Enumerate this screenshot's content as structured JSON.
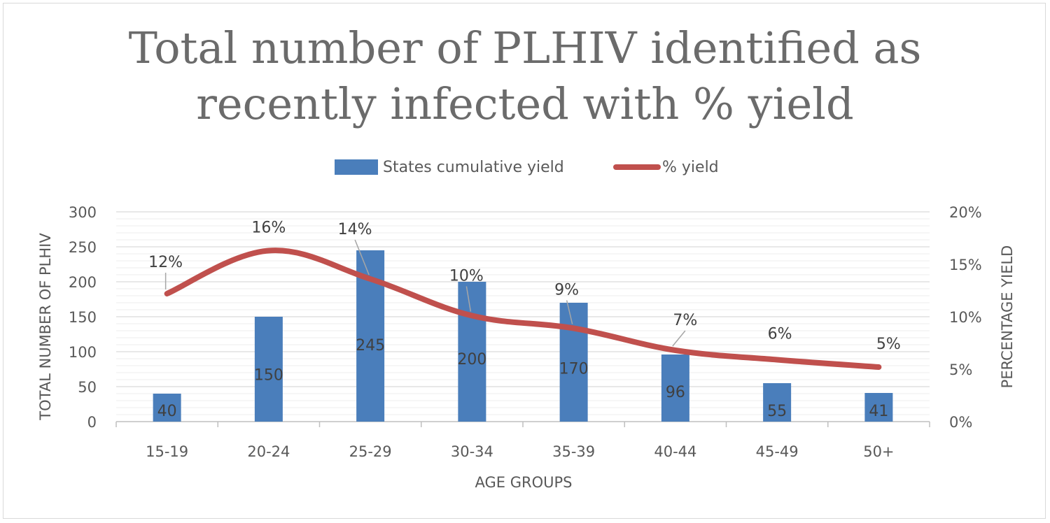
{
  "chart_data": {
    "type": "bar",
    "title_lines": [
      "Total number of PLHIV identified as",
      "recently infected with % yield"
    ],
    "categories": [
      "15-19",
      "20-24",
      "25-29",
      "30-34",
      "35-39",
      "40-44",
      "45-49",
      "50+"
    ],
    "series": [
      {
        "name": "States cumulative yield",
        "kind": "bar",
        "axis": "left",
        "color": "#4a7ebb",
        "values": [
          40,
          150,
          245,
          200,
          170,
          96,
          55,
          41
        ],
        "labels": [
          "40",
          "150",
          "245",
          "200",
          "170",
          "96",
          "55",
          "41"
        ]
      },
      {
        "name": "% yield",
        "kind": "line",
        "axis": "right",
        "color": "#c0504d",
        "values": [
          12.2,
          16.3,
          13.6,
          10.1,
          8.9,
          6.8,
          5.9,
          5.2
        ],
        "labels": [
          "12%",
          "16%",
          "14%",
          "10%",
          "9%",
          "7%",
          "6%",
          "5%"
        ]
      }
    ],
    "xlabel": "AGE GROUPS",
    "ylabel": "TOTAL NUMBER OF PLHIV",
    "y2label": "PERCENTAGE YIELD",
    "ylim": [
      0,
      300
    ],
    "y_ticks": [
      0,
      50,
      100,
      150,
      200,
      250,
      300
    ],
    "y_tick_labels": [
      "0",
      "50",
      "100",
      "150",
      "200",
      "250",
      "300"
    ],
    "y2lim": [
      0,
      20
    ],
    "y2_ticks": [
      0,
      5,
      10,
      15,
      20
    ],
    "y2_tick_labels": [
      "0%",
      "5%",
      "10%",
      "15%",
      "20%"
    ],
    "grid": true,
    "legend_position": "top"
  }
}
